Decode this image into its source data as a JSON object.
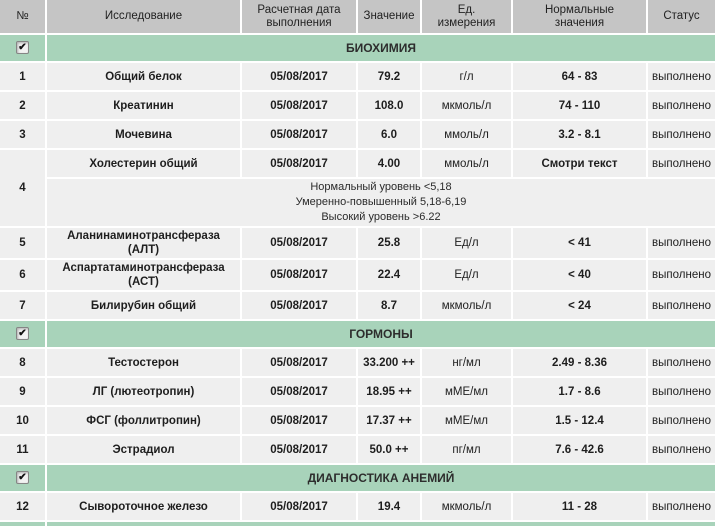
{
  "colors": {
    "header_bg": "#c5c5c5",
    "section_bg": "#a8d3ba",
    "cell_bg": "#efefef",
    "gap": "#ffffff",
    "text": "#1e1e1e"
  },
  "table": {
    "columns": [
      {
        "label": "№"
      },
      {
        "label": "Исследование"
      },
      {
        "label": "Расчетная дата выполнения"
      },
      {
        "label": "Значение"
      },
      {
        "label": "Ед. измерения"
      },
      {
        "label": "Нормальные значения"
      },
      {
        "label": "Статус"
      }
    ],
    "sections": [
      {
        "title": "БИОХИМИЯ",
        "checkbox_checked": true,
        "rows": [
          {
            "num": "1",
            "name": "Общий белок",
            "date": "05/08/2017",
            "value": "79.2",
            "unit": "г/л",
            "normal": "64 - 83",
            "status": "выполнено"
          },
          {
            "num": "2",
            "name": "Креатинин",
            "date": "05/08/2017",
            "value": "108.0",
            "unit": "мкмоль/л",
            "normal": "74 - 110",
            "status": "выполнено"
          },
          {
            "num": "3",
            "name": "Мочевина",
            "date": "05/08/2017",
            "value": "6.0",
            "unit": "ммоль/л",
            "normal": "3.2 - 8.1",
            "status": "выполнено"
          },
          {
            "num": "4",
            "name": "Холестерин общий",
            "date": "05/08/2017",
            "value": "4.00",
            "unit": "ммоль/л",
            "normal": "Смотри текст",
            "status": "выполнено",
            "note_lines": [
              "Нормальный уровень <5,18",
              "Умеренно-повышенный 5,18-6,19",
              "Высокий уровень >6.22"
            ]
          },
          {
            "num": "5",
            "name": "Аланинаминотрансфераза (АЛТ)",
            "date": "05/08/2017",
            "value": "25.8",
            "unit": "Ед/л",
            "normal": "< 41",
            "status": "выполнено"
          },
          {
            "num": "6",
            "name": "Аспартатаминотрансфераза (АСТ)",
            "date": "05/08/2017",
            "value": "22.4",
            "unit": "Ед/л",
            "normal": "< 40",
            "status": "выполнено"
          },
          {
            "num": "7",
            "name": "Билирубин общий",
            "date": "05/08/2017",
            "value": "8.7",
            "unit": "мкмоль/л",
            "normal": "< 24",
            "status": "выполнено"
          }
        ]
      },
      {
        "title": "ГОРМОНЫ",
        "checkbox_checked": true,
        "rows": [
          {
            "num": "8",
            "name": "Тестостерон",
            "date": "05/08/2017",
            "value": "33.200 ++",
            "unit": "нг/мл",
            "normal": "2.49 - 8.36",
            "status": "выполнено"
          },
          {
            "num": "9",
            "name": "ЛГ (лютеотропин)",
            "date": "05/08/2017",
            "value": "18.95 ++",
            "unit": "мМЕ/мл",
            "normal": "1.7 - 8.6",
            "status": "выполнено"
          },
          {
            "num": "10",
            "name": "ФСГ (фоллитропин)",
            "date": "05/08/2017",
            "value": "17.37 ++",
            "unit": "мМЕ/мл",
            "normal": "1.5 - 12.4",
            "status": "выполнено"
          },
          {
            "num": "11",
            "name": "Эстрадиол",
            "date": "05/08/2017",
            "value": "50.0 ++",
            "unit": "пг/мл",
            "normal": "7.6 - 42.6",
            "status": "выполнено"
          }
        ]
      },
      {
        "title": "ДИАГНОСТИКА АНЕМИЙ",
        "checkbox_checked": true,
        "rows": [
          {
            "num": "12",
            "name": "Сывороточное железо",
            "date": "05/08/2017",
            "value": "19.4",
            "unit": "мкмоль/л",
            "normal": "11 - 28",
            "status": "выполнено"
          }
        ]
      }
    ]
  }
}
